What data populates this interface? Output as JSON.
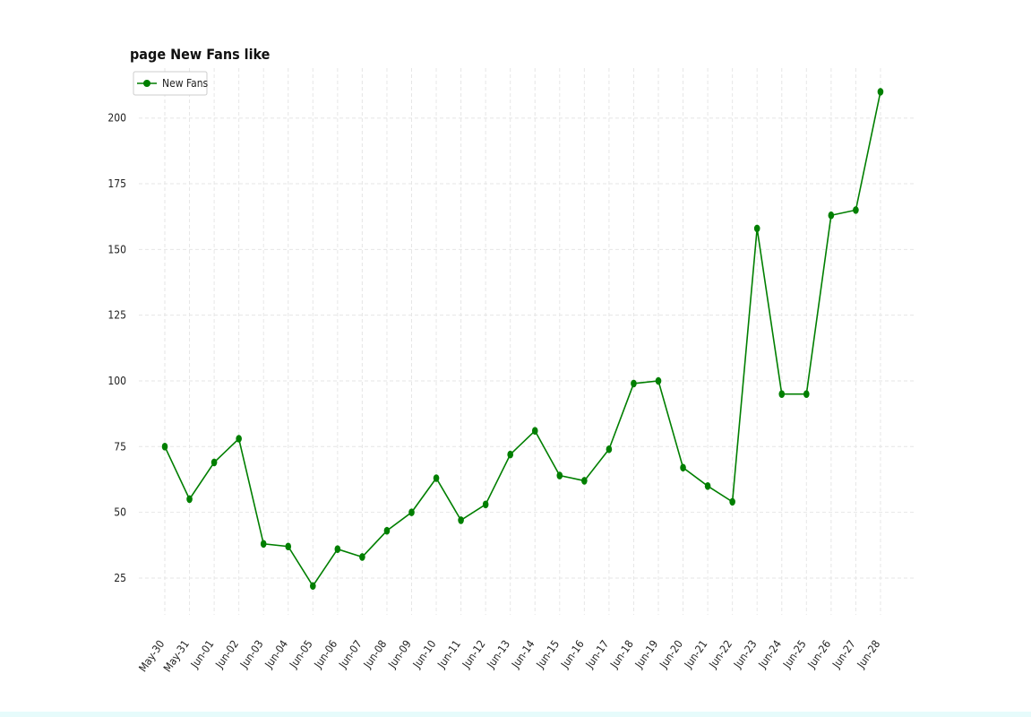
{
  "chart_data": {
    "type": "line",
    "title": "page New Fans like",
    "xlabel": "",
    "ylabel": "",
    "x": [
      "May-30",
      "May-31",
      "Jun-01",
      "Jun-02",
      "Jun-03",
      "Jun-04",
      "Jun-05",
      "Jun-06",
      "Jun-07",
      "Jun-08",
      "Jun-09",
      "Jun-10",
      "Jun-11",
      "Jun-12",
      "Jun-13",
      "Jun-14",
      "Jun-15",
      "Jun-16",
      "Jun-17",
      "Jun-18",
      "Jun-19",
      "Jun-20",
      "Jun-21",
      "Jun-22",
      "Jun-23",
      "Jun-24",
      "Jun-25",
      "Jun-26",
      "Jun-27",
      "Jun-28"
    ],
    "series": [
      {
        "name": "New Fans",
        "color": "#007f00",
        "values": [
          75,
          55,
          69,
          78,
          38,
          37,
          22,
          36,
          33,
          43,
          50,
          63,
          47,
          53,
          72,
          81,
          64,
          62,
          74,
          99,
          100,
          67,
          60,
          54,
          158,
          95,
          95,
          163,
          165,
          210
        ]
      }
    ],
    "yticks": [
      25,
      50,
      75,
      100,
      125,
      150,
      175,
      200
    ],
    "ylim": [
      11,
      219
    ],
    "grid": true,
    "legend": "top-left"
  }
}
